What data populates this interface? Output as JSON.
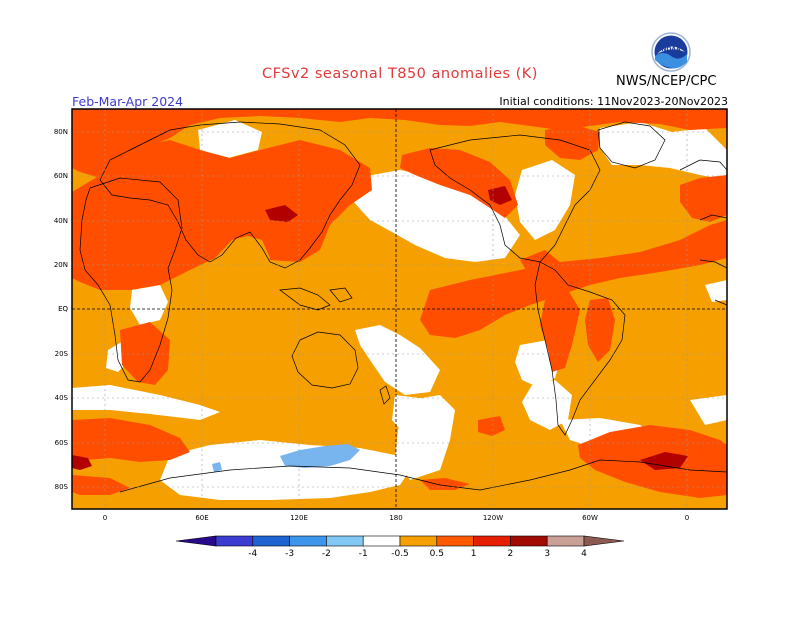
{
  "title": "CFSv2 seasonal T850 anomalies (K)",
  "season": "Feb-Mar-Apr 2024",
  "initial_conditions": "Initial conditions: 11Nov2023-20Nov2023",
  "agency": "NWS/NCEP/CPC",
  "logo": {
    "text": "NOAA",
    "icon": "noaa-logo-icon"
  },
  "lat_labels": [
    "80N",
    "60N",
    "40N",
    "20N",
    "EQ",
    "20S",
    "40S",
    "60S",
    "80S"
  ],
  "lon_labels": [
    "0",
    "60E",
    "120E",
    "180",
    "120W",
    "60W",
    "0"
  ],
  "colorbar": {
    "labels": [
      "-4",
      "-3",
      "-2",
      "-1",
      "-0.5",
      "0.5",
      "1",
      "2",
      "3",
      "4"
    ],
    "colors": [
      "#2a0a8c",
      "#3c3cd2",
      "#1e64d2",
      "#3c96eb",
      "#82c8f5",
      "#ffffff",
      "#f5a000",
      "#ff5a00",
      "#e61e00",
      "#a00a00",
      "#c8a096",
      "#8c5a50"
    ]
  },
  "colors": {
    "anom_05_1": "#f5a000",
    "anom_1_2": "#ff4e00",
    "anom_2_3": "#b20000",
    "anom_neg_1": "#78b4ee",
    "title": "#e03a3a",
    "season": "#3b3bd0"
  }
}
